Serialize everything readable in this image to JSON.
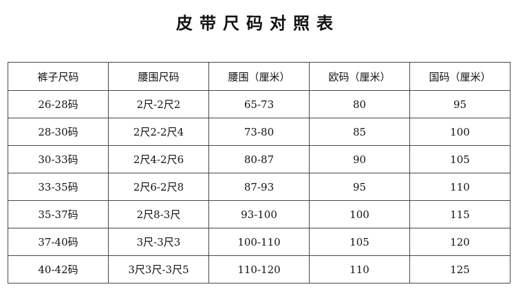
{
  "title": "皮带尺码对照表",
  "table": {
    "headers": [
      "裤子尺码",
      "腰围尺码",
      "腰围（厘米）",
      "欧码（厘米）",
      "国码（厘米）"
    ],
    "rows": [
      [
        "26-28码",
        "2尺-2尺2",
        "65-73",
        "80",
        "95"
      ],
      [
        "28-30码",
        "2尺2-2尺4",
        "73-80",
        "85",
        "100"
      ],
      [
        "30-33码",
        "2尺4-2尺6",
        "80-87",
        "90",
        "105"
      ],
      [
        "33-35码",
        "2尺6-2尺8",
        "87-93",
        "95",
        "110"
      ],
      [
        "35-37码",
        "2尺8-3尺",
        "93-100",
        "100",
        "115"
      ],
      [
        "37-40码",
        "3尺-3尺3",
        "100-110",
        "105",
        "120"
      ],
      [
        "40-42码",
        "3尺3尺-3尺5",
        "110-120",
        "110",
        "125"
      ]
    ]
  }
}
